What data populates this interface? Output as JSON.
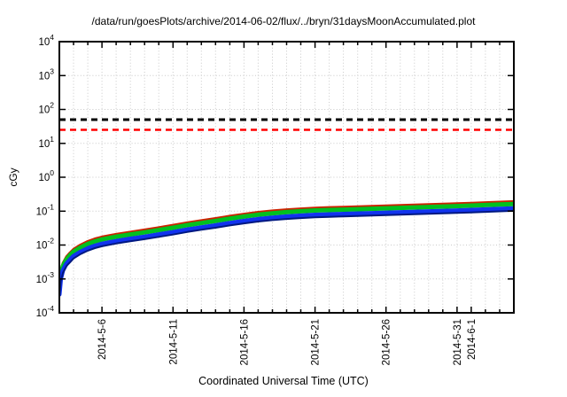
{
  "chart_data": {
    "type": "line",
    "title": "/data/run/goesPlots/archive/2014-06-02/flux/../bryn/31daysMoonAccumulated.plot",
    "xlabel": "Coordinated Universal Time (UTC)",
    "ylabel": "cGy",
    "y_scale": "log",
    "ylim_exp": [
      -4,
      4
    ],
    "y_ticks": [
      {
        "exp": 4,
        "label": "10^4"
      },
      {
        "exp": 3,
        "label": "10^3"
      },
      {
        "exp": 2,
        "label": "10^2"
      },
      {
        "exp": 1,
        "label": "10^1"
      },
      {
        "exp": 0,
        "label": "10^0"
      },
      {
        "exp": -1,
        "label": "10^-1"
      },
      {
        "exp": -2,
        "label": "10^-2"
      },
      {
        "exp": -3,
        "label": "10^-3"
      },
      {
        "exp": -4,
        "label": "10^-4"
      }
    ],
    "x_range_days": [
      0,
      32
    ],
    "x_start_date": "2014-5-3",
    "x_minor_tick_every_days": 1,
    "x_major_ticks": [
      {
        "day": 3,
        "label": "2014-5-6"
      },
      {
        "day": 8,
        "label": "2014-5-11"
      },
      {
        "day": 13,
        "label": "2014-5-16"
      },
      {
        "day": 18,
        "label": "2014-5-21"
      },
      {
        "day": 23,
        "label": "2014-5-26"
      },
      {
        "day": 28,
        "label": "2014-5-31"
      },
      {
        "day": 29,
        "label": "2014-6-1"
      }
    ],
    "grid": true,
    "grid_color": "#c9c9c9",
    "frame_color": "#000000",
    "threshold_lines": [
      {
        "name": "black-limit-50cgy",
        "value_cgy": 50,
        "color": "#000000",
        "style": "dashed",
        "stroke_width": 3
      },
      {
        "name": "red-limit-25cgy",
        "value_cgy": 25,
        "color": "#ff0000",
        "style": "dashed",
        "stroke_width": 2.5
      }
    ],
    "x_days": [
      0,
      0.1,
      0.25,
      0.5,
      0.75,
      1,
      1.5,
      2,
      2.5,
      3,
      4,
      5,
      6,
      7,
      8,
      9,
      10,
      11,
      12,
      13,
      14,
      15,
      16,
      17,
      18,
      19,
      20,
      21,
      22,
      23,
      24,
      25,
      26,
      27,
      28,
      29,
      30,
      31,
      32
    ],
    "series": [
      {
        "name": "dose-red",
        "color": "#cc2200",
        "stroke_width": 3,
        "values": [
          0.00056,
          0.0016,
          0.0029,
          0.0045,
          0.0059,
          0.0075,
          0.0101,
          0.0128,
          0.0152,
          0.0173,
          0.0208,
          0.0243,
          0.028,
          0.0328,
          0.0384,
          0.0456,
          0.0528,
          0.0608,
          0.0712,
          0.0816,
          0.0928,
          0.1024,
          0.1104,
          0.1176,
          0.124,
          0.128,
          0.1312,
          0.1352,
          0.1392,
          0.1432,
          0.1472,
          0.152,
          0.1568,
          0.1616,
          0.1664,
          0.1728,
          0.1792,
          0.1856,
          0.192
        ]
      },
      {
        "name": "dose-green",
        "color": "#00c020",
        "stroke_width": 5,
        "values": [
          0.00047,
          0.00135,
          0.00243,
          0.00378,
          0.005,
          0.00635,
          0.0085,
          0.0108,
          0.0128,
          0.0146,
          0.0176,
          0.0205,
          0.0236,
          0.0277,
          0.0324,
          0.0385,
          0.0446,
          0.0513,
          0.0601,
          0.0689,
          0.0783,
          0.0864,
          0.0932,
          0.0992,
          0.1046,
          0.108,
          0.1107,
          0.1141,
          0.1175,
          0.1208,
          0.1242,
          0.1283,
          0.1323,
          0.1364,
          0.1404,
          0.1458,
          0.1512,
          0.1566,
          0.162
        ]
      },
      {
        "name": "dose-blue",
        "color": "#1133ee",
        "stroke_width": 5,
        "values": [
          0.00035,
          0.001,
          0.0018,
          0.0028,
          0.0037,
          0.0047,
          0.0063,
          0.008,
          0.0095,
          0.0108,
          0.013,
          0.0152,
          0.0175,
          0.0205,
          0.024,
          0.0285,
          0.033,
          0.038,
          0.0445,
          0.051,
          0.058,
          0.064,
          0.069,
          0.0735,
          0.0775,
          0.08,
          0.082,
          0.0845,
          0.087,
          0.0895,
          0.092,
          0.095,
          0.098,
          0.101,
          0.104,
          0.108,
          0.112,
          0.116,
          0.12
        ]
      },
      {
        "name": "dose-navy",
        "color": "#001880",
        "stroke_width": 2,
        "values": [
          0.0003,
          0.00085,
          0.0015,
          0.0024,
          0.0031,
          0.004,
          0.0054,
          0.0068,
          0.0081,
          0.0092,
          0.0111,
          0.0129,
          0.0149,
          0.0174,
          0.0204,
          0.0242,
          0.0281,
          0.0323,
          0.0378,
          0.0434,
          0.0493,
          0.0544,
          0.0587,
          0.0625,
          0.0659,
          0.068,
          0.0697,
          0.0718,
          0.074,
          0.0761,
          0.0782,
          0.0808,
          0.0833,
          0.0859,
          0.0884,
          0.0918,
          0.0952,
          0.0986,
          0.102
        ]
      }
    ]
  }
}
